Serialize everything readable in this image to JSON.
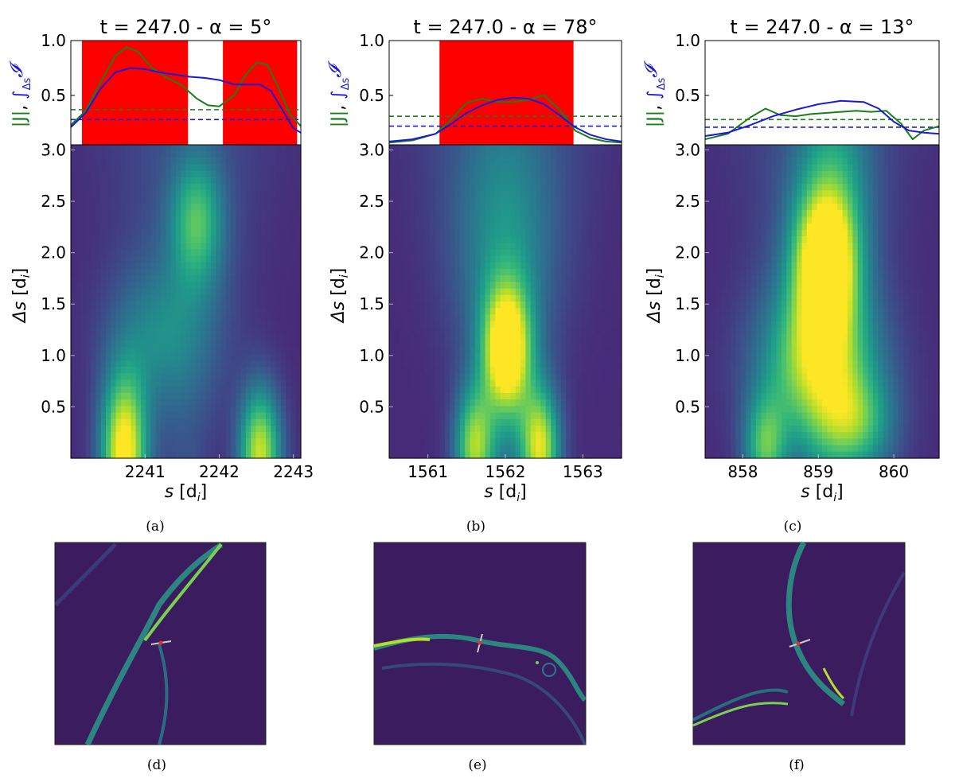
{
  "chart_data": [
    {
      "type": "line",
      "title": "t = 247.0 - α = 5°",
      "top_panel": {
        "ylabel_green": "|J|",
        "ylabel_blue": "∫_Δs 𝓘",
        "ylabel_blue_sub": "Δs",
        "ylim": [
          0.05,
          1.0
        ],
        "yticks": [
          "0.5",
          "1.0"
        ],
        "red_bands": [
          [
            2240.15,
            2241.58
          ],
          [
            2242.05,
            2243.05
          ]
        ],
        "series": [
          {
            "name": "|J|",
            "color": "#1a7f1a",
            "x": [
              2240.0,
              2240.2,
              2240.4,
              2240.6,
              2240.75,
              2240.9,
              2241.1,
              2241.3,
              2241.5,
              2241.7,
              2241.85,
              2242.0,
              2242.2,
              2242.35,
              2242.5,
              2242.65,
              2242.8,
              2242.95,
              2243.1
            ],
            "values": [
              0.23,
              0.36,
              0.62,
              0.86,
              0.94,
              0.9,
              0.75,
              0.66,
              0.59,
              0.47,
              0.41,
              0.4,
              0.5,
              0.68,
              0.8,
              0.78,
              0.57,
              0.33,
              0.22
            ]
          },
          {
            "name": "∫_Δs 𝓘",
            "color": "#1a1ad6",
            "x": [
              2240.0,
              2240.2,
              2240.4,
              2240.6,
              2240.8,
              2241.0,
              2241.2,
              2241.4,
              2241.6,
              2241.8,
              2242.0,
              2242.2,
              2242.4,
              2242.55,
              2242.7,
              2242.85,
              2243.0,
              2243.1
            ],
            "values": [
              0.21,
              0.34,
              0.56,
              0.71,
              0.75,
              0.74,
              0.71,
              0.69,
              0.67,
              0.66,
              0.64,
              0.6,
              0.6,
              0.6,
              0.54,
              0.37,
              0.2,
              0.16
            ]
          }
        ],
        "hlines": [
          {
            "series": "|J|",
            "value": 0.37,
            "color": "#1a7f1a"
          },
          {
            "series": "∫_Δs 𝓘",
            "value": 0.28,
            "color": "#1a1ad6"
          }
        ]
      },
      "heatmap": {
        "type": "heatmap",
        "xlabel": "s [d_i]",
        "xlabel_main": "s",
        "xlabel_unit_open": " [d",
        "xlabel_unit_sub": "i",
        "xlabel_unit_close": "]",
        "ylabel": "Δs [d_i]",
        "ylabel_main": "Δs",
        "xlim": [
          2240.0,
          2243.1
        ],
        "ylim": [
          0.0,
          3.05
        ],
        "xticks": [
          "2241",
          "2242",
          "2243"
        ],
        "xtick_values": [
          2241,
          2242,
          2243
        ],
        "yticks": [
          "0.5",
          "1.0",
          "1.5",
          "2.0",
          "2.5",
          "3.0"
        ],
        "ytick_values": [
          0.5,
          1.0,
          1.5,
          2.0,
          2.5,
          3.0
        ],
        "blobs": [
          {
            "x": 2240.72,
            "y": 0.05,
            "amp": 0.95,
            "sx": 0.22,
            "sy": 0.55,
            "slant": 0.0
          },
          {
            "x": 2242.55,
            "y": 0.05,
            "amp": 0.8,
            "sx": 0.2,
            "sy": 0.45,
            "slant": 0.0
          },
          {
            "x": 2241.7,
            "y": 2.3,
            "amp": 0.5,
            "sx": 0.25,
            "sy": 0.45,
            "slant": 0.0
          },
          {
            "x": 2241.2,
            "y": 1.2,
            "amp": 0.28,
            "sx": 0.5,
            "sy": 0.5,
            "slant": 0.0
          }
        ]
      },
      "label": "(a)"
    },
    {
      "type": "line",
      "title": "t = 247.0 - α = 78°",
      "top_panel": {
        "ylabel_green": "|J|",
        "ylabel_blue": "∫_Δs 𝓘",
        "ylabel_blue_sub": "Δs",
        "ylim": [
          0.05,
          1.0
        ],
        "yticks": [
          "0.5",
          "1.0"
        ],
        "red_bands": [
          [
            1561.15,
            1562.88
          ]
        ],
        "series": [
          {
            "name": "|J|",
            "color": "#1a7f1a",
            "x": [
              1560.5,
              1560.8,
              1561.1,
              1561.3,
              1561.5,
              1561.7,
              1561.9,
              1562.1,
              1562.3,
              1562.5,
              1562.7,
              1562.9,
              1563.1,
              1563.3,
              1563.5
            ],
            "values": [
              0.07,
              0.09,
              0.15,
              0.28,
              0.43,
              0.47,
              0.44,
              0.44,
              0.46,
              0.5,
              0.37,
              0.18,
              0.11,
              0.08,
              0.07
            ]
          },
          {
            "name": "∫_Δs 𝓘",
            "color": "#1a1ad6",
            "x": [
              1560.5,
              1560.8,
              1561.1,
              1561.3,
              1561.5,
              1561.7,
              1561.9,
              1562.1,
              1562.3,
              1562.5,
              1562.7,
              1562.9,
              1563.1,
              1563.3,
              1563.5
            ],
            "values": [
              0.08,
              0.1,
              0.15,
              0.24,
              0.34,
              0.41,
              0.46,
              0.48,
              0.47,
              0.42,
              0.32,
              0.21,
              0.14,
              0.1,
              0.08
            ]
          }
        ],
        "hlines": [
          {
            "series": "|J|",
            "value": 0.31,
            "color": "#1a7f1a"
          },
          {
            "series": "∫_Δs 𝓘",
            "value": 0.22,
            "color": "#1a1ad6"
          }
        ]
      },
      "heatmap": {
        "type": "heatmap",
        "xlabel": "s [d_i]",
        "xlabel_main": "s",
        "xlabel_unit_open": " [d",
        "xlabel_unit_sub": "i",
        "xlabel_unit_close": "]",
        "ylabel": "Δs [d_i]",
        "ylabel_main": "Δs",
        "xlim": [
          1560.5,
          1563.5
        ],
        "ylim": [
          0.0,
          3.05
        ],
        "xticks": [
          "1561",
          "1562",
          "1563"
        ],
        "xtick_values": [
          1561,
          1562,
          1563
        ],
        "yticks": [
          "0.5",
          "1.0",
          "1.5",
          "2.0",
          "2.5",
          "3.0"
        ],
        "ytick_values": [
          0.5,
          1.0,
          1.5,
          2.0,
          2.5,
          3.0
        ],
        "blobs": [
          {
            "x": 1562.02,
            "y": 1.05,
            "amp": 0.95,
            "sx": 0.22,
            "sy": 0.45,
            "slant": 0.0
          },
          {
            "x": 1561.6,
            "y": 0.1,
            "amp": 0.7,
            "sx": 0.18,
            "sy": 0.4,
            "slant": 0.0
          },
          {
            "x": 1562.45,
            "y": 0.1,
            "amp": 0.8,
            "sx": 0.18,
            "sy": 0.4,
            "slant": 0.0
          },
          {
            "x": 1562.0,
            "y": 2.2,
            "amp": 0.28,
            "sx": 0.45,
            "sy": 0.9,
            "slant": 0.0
          }
        ]
      },
      "label": "(b)"
    },
    {
      "type": "line",
      "title": "t = 247.0 - α = 13°",
      "top_panel": {
        "ylabel_green": "|J|",
        "ylabel_blue": "∫_Δs 𝓘",
        "ylabel_blue_sub": "Δs",
        "ylim": [
          0.05,
          1.0
        ],
        "yticks": [
          "0.5",
          "1.0"
        ],
        "red_bands": [],
        "series": [
          {
            "name": "|J|",
            "color": "#1a7f1a",
            "x": [
              857.5,
              857.8,
              858.1,
              858.3,
              858.5,
              858.7,
              858.9,
              859.1,
              859.3,
              859.5,
              859.7,
              859.9,
              860.1,
              860.25,
              860.4,
              860.6
            ],
            "values": [
              0.1,
              0.15,
              0.3,
              0.38,
              0.32,
              0.31,
              0.33,
              0.34,
              0.35,
              0.36,
              0.35,
              0.36,
              0.24,
              0.1,
              0.18,
              0.22
            ]
          },
          {
            "name": "∫_Δs 𝓘",
            "color": "#1a1ad6",
            "x": [
              857.5,
              857.8,
              858.1,
              858.4,
              858.7,
              859.0,
              859.3,
              859.6,
              859.8,
              860.0,
              860.2,
              860.4,
              860.6
            ],
            "values": [
              0.13,
              0.16,
              0.23,
              0.31,
              0.37,
              0.42,
              0.45,
              0.44,
              0.38,
              0.26,
              0.18,
              0.16,
              0.15
            ]
          }
        ],
        "hlines": [
          {
            "series": "|J|",
            "value": 0.28,
            "color": "#1a7f1a"
          },
          {
            "series": "∫_Δs 𝓘",
            "value": 0.21,
            "color": "#1a1ad6"
          }
        ]
      },
      "heatmap": {
        "type": "heatmap",
        "xlabel": "s [d_i]",
        "xlabel_main": "s",
        "xlabel_unit_open": " [d",
        "xlabel_unit_sub": "i",
        "xlabel_unit_close": "]",
        "ylabel": "Δs [d_i]",
        "ylabel_main": "Δs",
        "xlim": [
          857.5,
          860.6
        ],
        "ylim": [
          0.0,
          3.05
        ],
        "xticks": [
          "858",
          "859",
          "860"
        ],
        "xtick_values": [
          858,
          859,
          860
        ],
        "yticks": [
          "0.5",
          "1.0",
          "1.5",
          "2.0",
          "2.5",
          "3.0"
        ],
        "ytick_values": [
          0.5,
          1.0,
          1.5,
          2.0,
          2.5,
          3.0
        ],
        "blobs": [
          {
            "x": 859.1,
            "y": 1.9,
            "amp": 1.0,
            "sx": 0.3,
            "sy": 0.5,
            "slant": 0.0
          },
          {
            "x": 859.0,
            "y": 0.9,
            "amp": 0.7,
            "sx": 0.55,
            "sy": 0.55,
            "slant": 0.0
          },
          {
            "x": 858.3,
            "y": 0.1,
            "amp": 0.55,
            "sx": 0.2,
            "sy": 0.35,
            "slant": 0.0
          },
          {
            "x": 859.5,
            "y": 0.3,
            "amp": 0.45,
            "sx": 0.35,
            "sy": 0.35,
            "slant": 0.0
          },
          {
            "x": 859.2,
            "y": 2.8,
            "amp": 0.3,
            "sx": 0.35,
            "sy": 0.6,
            "slant": 0.0
          }
        ]
      },
      "label": "(c)"
    }
  ],
  "thumbnails": [
    {
      "label": "(d)"
    },
    {
      "label": "(e)"
    },
    {
      "label": "(f)"
    }
  ],
  "colors": {
    "viridis_low": "#440154",
    "viridis_high": "#fde725",
    "band_red": "#ff0000",
    "green_line": "#1a7f1a",
    "blue_line": "#1a1ad6"
  }
}
